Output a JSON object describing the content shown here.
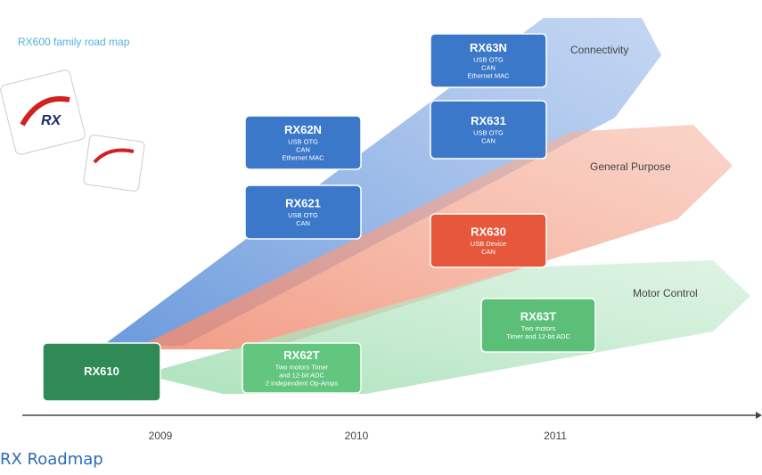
{
  "header": {
    "title": "RX600 family road map",
    "chip_logo": "RX"
  },
  "bands": [
    {
      "label": "Connectivity"
    },
    {
      "label": "General Purpose"
    },
    {
      "label": "Motor Control"
    }
  ],
  "products": [
    {
      "name": "RX610",
      "features": []
    },
    {
      "name": "RX62N",
      "features": [
        "USB OTG",
        "CAN",
        "Ethernet MAC"
      ]
    },
    {
      "name": "RX621",
      "features": [
        "USB OTG",
        "CAN"
      ]
    },
    {
      "name": "RX62T",
      "features": [
        "Two motors Timer",
        "and 12-bit ADC",
        "2 independent Op-Amps"
      ]
    },
    {
      "name": "RX63N",
      "features": [
        "USB OTG",
        "CAN",
        "Ethernet MAC"
      ]
    },
    {
      "name": "RX631",
      "features": [
        "USB OTG",
        "CAN"
      ]
    },
    {
      "name": "RX630",
      "features": [
        "USB Device",
        "CAN"
      ]
    },
    {
      "name": "RX63T",
      "features": [
        "Two motors",
        "Timer and 12-bit ADC"
      ]
    }
  ],
  "timeline": {
    "years": [
      "2009",
      "2010",
      "2011"
    ]
  },
  "caption": "RX Roadmap"
}
